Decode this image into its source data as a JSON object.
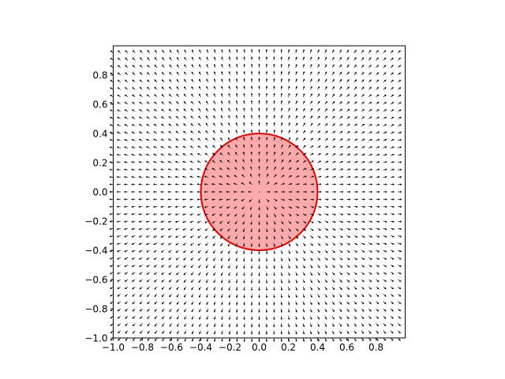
{
  "chart_data": {
    "type": "quiver",
    "title": "",
    "xlabel": "",
    "ylabel": "",
    "xlim": [
      -1.0,
      1.0
    ],
    "ylim": [
      -1.0,
      1.0
    ],
    "aspect": "equal",
    "grid": false,
    "legend": null,
    "x_ticks": [
      -1.0,
      -0.8,
      -0.6,
      -0.4,
      -0.2,
      0.0,
      0.2,
      0.4,
      0.6,
      0.8
    ],
    "x_tick_labels": [
      "−1.0",
      "−0.8",
      "−0.6",
      "−0.4",
      "−0.2",
      "0.0",
      "0.2",
      "0.4",
      "0.6",
      "0.8"
    ],
    "y_ticks": [
      -1.0,
      -0.8,
      -0.6,
      -0.4,
      -0.2,
      0.0,
      0.2,
      0.4,
      0.6,
      0.8
    ],
    "y_tick_labels": [
      "−1.0",
      "−0.8",
      "−0.6",
      "−0.4",
      "−0.2",
      "0.0",
      "0.2",
      "0.4",
      "0.6",
      "0.8"
    ],
    "vector_field": {
      "grid_start": -1.0,
      "grid_step": 0.05,
      "grid_count": 40,
      "direction": "radially outward from origin (0, 0)",
      "arrow_color": "#000000"
    },
    "circle": {
      "center": [
        0.0,
        0.0
      ],
      "radius": 0.4,
      "edge_color": "#e00000",
      "fill_color": "#ffaaaa"
    }
  }
}
